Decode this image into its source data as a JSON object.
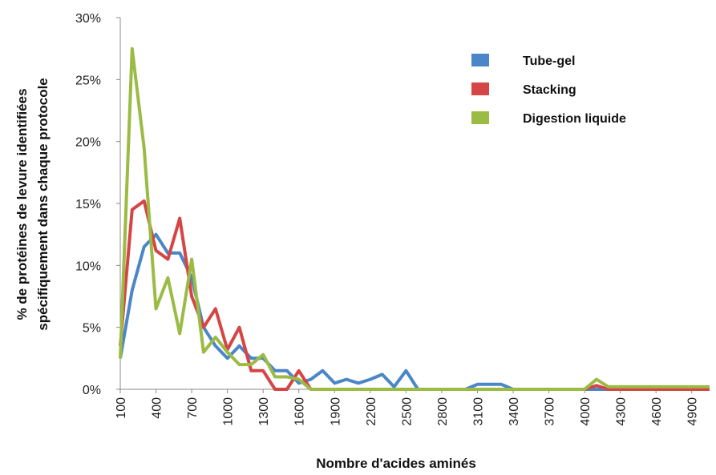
{
  "chart_data": {
    "type": "line",
    "xlabel": "Nombre d'acides aminés",
    "ylabel_line1": "% de protéines de levure identifiées",
    "ylabel_line2": "spécifiquement dans chaque protocole",
    "ylim": [
      0,
      30
    ],
    "yticks": [
      "0%",
      "5%",
      "10%",
      "15%",
      "20%",
      "25%",
      "30%"
    ],
    "xlim": [
      100,
      5050
    ],
    "xticks": [
      100,
      400,
      700,
      1000,
      1300,
      1600,
      1900,
      2200,
      2500,
      2800,
      3100,
      3400,
      3700,
      4000,
      4300,
      4600,
      4900
    ],
    "grid": false,
    "legend_position": "top-right",
    "series": [
      {
        "name": "Tube-gel",
        "color": "#4a86c8",
        "points": [
          [
            100,
            2.5
          ],
          [
            200,
            8
          ],
          [
            300,
            11.5
          ],
          [
            400,
            12.5
          ],
          [
            500,
            11
          ],
          [
            600,
            11
          ],
          [
            700,
            9
          ],
          [
            800,
            5
          ],
          [
            900,
            3.5
          ],
          [
            1000,
            2.5
          ],
          [
            1100,
            3.5
          ],
          [
            1200,
            2.5
          ],
          [
            1300,
            2.5
          ],
          [
            1400,
            1.5
          ],
          [
            1500,
            1.5
          ],
          [
            1600,
            0.5
          ],
          [
            1700,
            0.8
          ],
          [
            1800,
            1.5
          ],
          [
            1900,
            0.5
          ],
          [
            2000,
            0.8
          ],
          [
            2100,
            0.5
          ],
          [
            2200,
            0.8
          ],
          [
            2300,
            1.2
          ],
          [
            2400,
            0.2
          ],
          [
            2500,
            1.5
          ],
          [
            2600,
            0
          ],
          [
            2700,
            0
          ],
          [
            2800,
            0
          ],
          [
            2900,
            0
          ],
          [
            3000,
            0
          ],
          [
            3100,
            0.4
          ],
          [
            3200,
            0.4
          ],
          [
            3300,
            0.4
          ],
          [
            3400,
            0
          ],
          [
            5050,
            0
          ]
        ]
      },
      {
        "name": "Stacking",
        "color": "#d64545",
        "points": [
          [
            100,
            3.5
          ],
          [
            200,
            14.5
          ],
          [
            300,
            15.2
          ],
          [
            400,
            11.2
          ],
          [
            500,
            10.5
          ],
          [
            600,
            13.8
          ],
          [
            700,
            7.5
          ],
          [
            800,
            5
          ],
          [
            900,
            6.5
          ],
          [
            1000,
            3.2
          ],
          [
            1100,
            5
          ],
          [
            1200,
            1.5
          ],
          [
            1300,
            1.5
          ],
          [
            1400,
            0
          ],
          [
            1500,
            0
          ],
          [
            1600,
            1.5
          ],
          [
            1700,
            0
          ],
          [
            1800,
            0
          ],
          [
            2800,
            0
          ],
          [
            4000,
            0
          ],
          [
            4100,
            0.3
          ],
          [
            4200,
            0
          ],
          [
            5050,
            0
          ]
        ]
      },
      {
        "name": "Digestion liquide",
        "color": "#9bbb44",
        "points": [
          [
            100,
            2.5
          ],
          [
            200,
            27.5
          ],
          [
            300,
            19.5
          ],
          [
            400,
            6.5
          ],
          [
            500,
            9
          ],
          [
            600,
            4.5
          ],
          [
            700,
            10.5
          ],
          [
            800,
            3
          ],
          [
            900,
            4.2
          ],
          [
            1000,
            3
          ],
          [
            1100,
            2
          ],
          [
            1200,
            2
          ],
          [
            1300,
            2.8
          ],
          [
            1400,
            1
          ],
          [
            1500,
            1
          ],
          [
            1600,
            0.8
          ],
          [
            1700,
            0
          ],
          [
            2800,
            0
          ],
          [
            4000,
            0
          ],
          [
            4100,
            0.8
          ],
          [
            4200,
            0.2
          ],
          [
            5050,
            0.2
          ]
        ]
      }
    ]
  }
}
